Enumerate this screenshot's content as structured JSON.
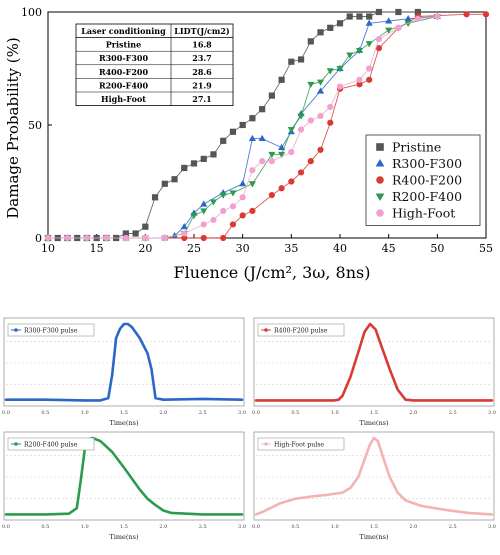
{
  "chart_data": [
    {
      "type": "scatter",
      "ylabel": "Damage Probability (%)",
      "xlabel": "Fluence (J/cm², 3ω, 8ns)",
      "xlim": [
        10,
        55
      ],
      "ylim": [
        0,
        100
      ],
      "xticks": [
        10,
        15,
        20,
        25,
        30,
        35,
        40,
        45,
        50,
        55
      ],
      "yticks": [
        0,
        50,
        100
      ],
      "legend_position": "right",
      "series": [
        {
          "name": "Pristine",
          "color": "#555555",
          "marker": "square",
          "points": [
            [
              10,
              0
            ],
            [
              11,
              0
            ],
            [
              12,
              0
            ],
            [
              13,
              0
            ],
            [
              14,
              0
            ],
            [
              15,
              0
            ],
            [
              16,
              0
            ],
            [
              17,
              0
            ],
            [
              18,
              2
            ],
            [
              19,
              2
            ],
            [
              20,
              5
            ],
            [
              21,
              18
            ],
            [
              22,
              24
            ],
            [
              23,
              26
            ],
            [
              24,
              31
            ],
            [
              25,
              33
            ],
            [
              26,
              35
            ],
            [
              27,
              37
            ],
            [
              28,
              43
            ],
            [
              29,
              47
            ],
            [
              30,
              50
            ],
            [
              31,
              53
            ],
            [
              32,
              57
            ],
            [
              33,
              63
            ],
            [
              34,
              70
            ],
            [
              35,
              78
            ],
            [
              36,
              79
            ],
            [
              37,
              87
            ],
            [
              38,
              91
            ],
            [
              39,
              93
            ],
            [
              40,
              95
            ],
            [
              41,
              98
            ],
            [
              42,
              98
            ],
            [
              43,
              98
            ],
            [
              44,
              100
            ],
            [
              46,
              100
            ],
            [
              48,
              100
            ]
          ]
        },
        {
          "name": "R300-F300",
          "color": "#2a67c9",
          "marker": "triangle-up",
          "points": [
            [
              10,
              0
            ],
            [
              12,
              0
            ],
            [
              14,
              0
            ],
            [
              16,
              0
            ],
            [
              18,
              0
            ],
            [
              20,
              0
            ],
            [
              22,
              0
            ],
            [
              23,
              1
            ],
            [
              24,
              5
            ],
            [
              25,
              11
            ],
            [
              26,
              15
            ],
            [
              28,
              20
            ],
            [
              30,
              24
            ],
            [
              31,
              44
            ],
            [
              32,
              44
            ],
            [
              34,
              40
            ],
            [
              35,
              47
            ],
            [
              36,
              55
            ],
            [
              38,
              65
            ],
            [
              40,
              75
            ],
            [
              42,
              83
            ],
            [
              43,
              95
            ],
            [
              45,
              96
            ],
            [
              47,
              97
            ],
            [
              50,
              98
            ]
          ]
        },
        {
          "name": "R400-F200",
          "color": "#d93a34",
          "marker": "circle",
          "points": [
            [
              10,
              0
            ],
            [
              12,
              0
            ],
            [
              14,
              0
            ],
            [
              16,
              0
            ],
            [
              18,
              0
            ],
            [
              20,
              0
            ],
            [
              22,
              0
            ],
            [
              24,
              0
            ],
            [
              26,
              0
            ],
            [
              28,
              0
            ],
            [
              29,
              6
            ],
            [
              30,
              10
            ],
            [
              31,
              12
            ],
            [
              33,
              19
            ],
            [
              34,
              22
            ],
            [
              35,
              25
            ],
            [
              36,
              29
            ],
            [
              37,
              34
            ],
            [
              38,
              39
            ],
            [
              39,
              51
            ],
            [
              40,
              66
            ],
            [
              42,
              68
            ],
            [
              43,
              70
            ],
            [
              44,
              84
            ],
            [
              46,
              93
            ],
            [
              48,
              98
            ],
            [
              53,
              99
            ],
            [
              55,
              99
            ]
          ]
        },
        {
          "name": "R200-F400",
          "color": "#2e9a4c",
          "marker": "triangle-down",
          "points": [
            [
              10,
              0
            ],
            [
              12,
              0
            ],
            [
              14,
              0
            ],
            [
              16,
              0
            ],
            [
              18,
              0
            ],
            [
              20,
              0
            ],
            [
              22,
              0
            ],
            [
              24,
              2
            ],
            [
              25,
              10
            ],
            [
              26,
              12
            ],
            [
              27,
              16
            ],
            [
              28,
              19
            ],
            [
              29,
              20
            ],
            [
              31,
              24
            ],
            [
              33,
              37
            ],
            [
              34,
              37
            ],
            [
              35,
              48
            ],
            [
              36,
              54
            ],
            [
              37,
              68
            ],
            [
              38,
              69
            ],
            [
              39,
              74
            ],
            [
              40,
              75
            ],
            [
              41,
              81
            ],
            [
              42,
              83
            ],
            [
              43,
              86
            ],
            [
              45,
              92
            ],
            [
              47,
              95
            ],
            [
              50,
              98
            ]
          ]
        },
        {
          "name": "High-Foot",
          "color": "#f2a0cf",
          "marker": "circle",
          "points": [
            [
              10,
              0
            ],
            [
              12,
              0
            ],
            [
              14,
              0
            ],
            [
              16,
              0
            ],
            [
              18,
              0
            ],
            [
              20,
              0
            ],
            [
              22,
              0
            ],
            [
              24,
              2
            ],
            [
              26,
              6
            ],
            [
              27,
              8
            ],
            [
              28,
              12
            ],
            [
              29,
              14
            ],
            [
              30,
              18
            ],
            [
              31,
              30
            ],
            [
              32,
              34
            ],
            [
              33,
              34
            ],
            [
              35,
              38
            ],
            [
              36,
              48
            ],
            [
              37,
              52
            ],
            [
              38,
              54
            ],
            [
              39,
              58
            ],
            [
              40,
              67
            ],
            [
              42,
              70
            ],
            [
              43,
              75
            ],
            [
              44,
              88
            ],
            [
              46,
              93
            ],
            [
              48,
              97
            ],
            [
              50,
              98
            ]
          ]
        }
      ],
      "table": {
        "headers": [
          "Laser conditioning",
          "LIDT(J/cm2)"
        ],
        "rows": [
          [
            "Pristine",
            "16.8"
          ],
          [
            "R300-F300",
            "23.7"
          ],
          [
            "R400-F200",
            "28.6"
          ],
          [
            "R200-F400",
            "21.9"
          ],
          [
            "High-Foot",
            "27.1"
          ]
        ]
      }
    },
    {
      "type": "line",
      "legend": "R300-F300 pulse",
      "color": "#2a67c9",
      "xlabel": "Time(ns)",
      "xlim": [
        0,
        3.0
      ],
      "xticks": [
        "0.0",
        "0.5",
        "1.0",
        "1.5",
        "2.0",
        "2.5",
        "3.0"
      ],
      "points": [
        [
          0,
          0.03
        ],
        [
          0.5,
          0.03
        ],
        [
          1.0,
          0.02
        ],
        [
          1.2,
          0.02
        ],
        [
          1.3,
          0.05
        ],
        [
          1.35,
          0.35
        ],
        [
          1.4,
          0.82
        ],
        [
          1.45,
          0.94
        ],
        [
          1.5,
          1.0
        ],
        [
          1.55,
          1.0
        ],
        [
          1.6,
          0.96
        ],
        [
          1.7,
          0.82
        ],
        [
          1.8,
          0.62
        ],
        [
          1.85,
          0.42
        ],
        [
          1.88,
          0.2
        ],
        [
          1.9,
          0.05
        ],
        [
          2.0,
          0.03
        ],
        [
          2.5,
          0.04
        ],
        [
          3.0,
          0.03
        ]
      ]
    },
    {
      "type": "line",
      "legend": "R400-F200 pulse",
      "color": "#d93a34",
      "xlabel": "Time(ns)",
      "xlim": [
        0,
        3.0
      ],
      "xticks": [
        "0.0",
        "0.5",
        "1.0",
        "1.5",
        "2.0",
        "2.5",
        "3.0"
      ],
      "points": [
        [
          0,
          0.02
        ],
        [
          0.5,
          0.02
        ],
        [
          1.0,
          0.02
        ],
        [
          1.05,
          0.03
        ],
        [
          1.1,
          0.08
        ],
        [
          1.2,
          0.32
        ],
        [
          1.3,
          0.64
        ],
        [
          1.38,
          0.9
        ],
        [
          1.45,
          1.0
        ],
        [
          1.52,
          0.93
        ],
        [
          1.6,
          0.7
        ],
        [
          1.7,
          0.42
        ],
        [
          1.8,
          0.16
        ],
        [
          1.9,
          0.03
        ],
        [
          2.0,
          0.02
        ],
        [
          2.5,
          0.02
        ],
        [
          3.0,
          0.02
        ]
      ]
    },
    {
      "type": "line",
      "legend": "R200-F400 pulse",
      "color": "#2e9a4c",
      "xlabel": "Time(ns)",
      "xlim": [
        0,
        3.0
      ],
      "xticks": [
        "0.0",
        "0.5",
        "1.0",
        "1.5",
        "2.0",
        "2.5",
        "3.0"
      ],
      "points": [
        [
          0,
          0.02
        ],
        [
          0.5,
          0.02
        ],
        [
          0.8,
          0.03
        ],
        [
          0.9,
          0.1
        ],
        [
          0.95,
          0.45
        ],
        [
          1.0,
          0.85
        ],
        [
          1.05,
          0.98
        ],
        [
          1.1,
          1.0
        ],
        [
          1.2,
          0.96
        ],
        [
          1.35,
          0.82
        ],
        [
          1.5,
          0.62
        ],
        [
          1.6,
          0.48
        ],
        [
          1.7,
          0.34
        ],
        [
          1.8,
          0.22
        ],
        [
          1.9,
          0.14
        ],
        [
          2.0,
          0.07
        ],
        [
          2.1,
          0.04
        ],
        [
          2.5,
          0.02
        ],
        [
          3.0,
          0.02
        ]
      ]
    },
    {
      "type": "line",
      "legend": "High-Foot pulse",
      "color": "#f3b3b3",
      "xlabel": "Time(ns)",
      "xlim": [
        0,
        3.0
      ],
      "xticks": [
        "0.0",
        "0.5",
        "1.0",
        "1.5",
        "2.0",
        "2.5",
        "3.0"
      ],
      "points": [
        [
          0,
          0.02
        ],
        [
          0.1,
          0.06
        ],
        [
          0.3,
          0.16
        ],
        [
          0.5,
          0.22
        ],
        [
          0.7,
          0.25
        ],
        [
          0.9,
          0.27
        ],
        [
          1.1,
          0.3
        ],
        [
          1.2,
          0.36
        ],
        [
          1.3,
          0.5
        ],
        [
          1.4,
          0.78
        ],
        [
          1.45,
          0.92
        ],
        [
          1.5,
          1.0
        ],
        [
          1.55,
          0.96
        ],
        [
          1.6,
          0.8
        ],
        [
          1.7,
          0.5
        ],
        [
          1.8,
          0.3
        ],
        [
          1.9,
          0.2
        ],
        [
          2.1,
          0.13
        ],
        [
          2.4,
          0.08
        ],
        [
          2.7,
          0.04
        ],
        [
          3.0,
          0.02
        ]
      ]
    }
  ]
}
